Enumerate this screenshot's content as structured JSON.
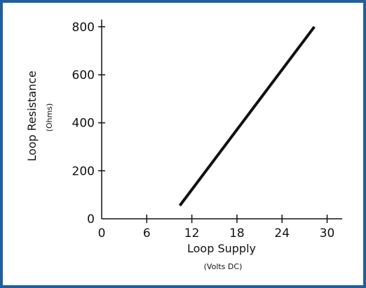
{
  "chart_data": {
    "type": "line",
    "title": "",
    "xlabel": "Loop Supply",
    "xlabel_sub": "(Volts DC)",
    "ylabel": "Loop Resistance",
    "ylabel_sub": "(Ohms)",
    "xlim": [
      0,
      32
    ],
    "ylim": [
      0,
      830
    ],
    "xticks": [
      0,
      6,
      12,
      18,
      24,
      30
    ],
    "yticks": [
      0,
      200,
      400,
      600,
      800
    ],
    "grid": false,
    "series": [
      {
        "x": [
          10.4,
          28.3
        ],
        "y": [
          55,
          800
        ],
        "color": "#111111"
      }
    ]
  },
  "colors": {
    "frame": "#1f5fa0",
    "ink": "#111111"
  }
}
